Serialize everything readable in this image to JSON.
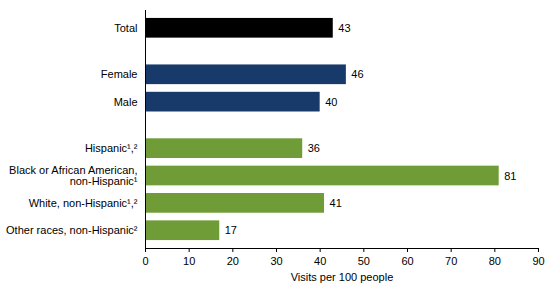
{
  "chart_data": {
    "type": "bar",
    "orientation": "horizontal",
    "categories": [
      "Total",
      "Female",
      "Male",
      "Hispanic¹,²",
      "Black or African American, non-Hispanic¹",
      "White, non-Hispanic¹,²",
      "Other races, non-Hispanic²"
    ],
    "values": [
      43,
      46,
      40,
      36,
      81,
      41,
      17
    ],
    "colors": [
      "#000000",
      "#173a6b",
      "#173a6b",
      "#6f9c36",
      "#6f9c36",
      "#6f9c36",
      "#6f9c36"
    ],
    "x_label": "Visits per 100 people",
    "xlim": [
      0,
      90
    ],
    "xticks": [
      0,
      10,
      20,
      30,
      40,
      50,
      60,
      70,
      80,
      90
    ],
    "data_labels": true,
    "grid": false
  }
}
